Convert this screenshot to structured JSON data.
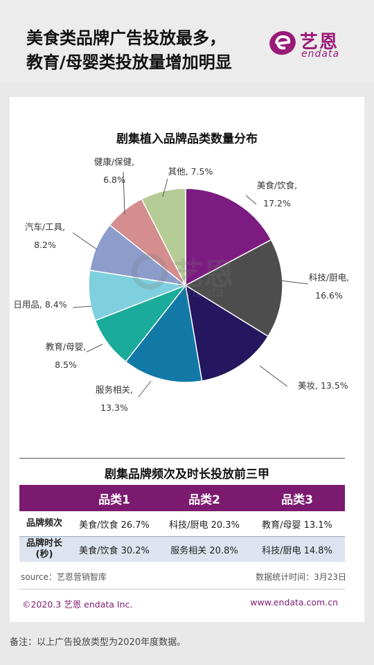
{
  "header": {
    "title_line1": "美食类品牌广告投放最多，",
    "title_line2": "教育/母婴类投放量增加明显",
    "logo_cn": "艺恩",
    "logo_en": "endata"
  },
  "chart_data": {
    "type": "pie",
    "title": "剧集植入品牌品类数量分布",
    "slices": [
      {
        "name": "美食/饮食",
        "value": 17.2,
        "label": "17.2%",
        "color": "#7c1c80"
      },
      {
        "name": "科技/厨电",
        "value": 16.6,
        "label": "16.6%",
        "color": "#4d4d4d"
      },
      {
        "name": "美妆",
        "value": 13.5,
        "label": "美妆, 13.5%",
        "color": "#241760"
      },
      {
        "name": "服务相关",
        "value": 13.3,
        "label": "13.3%",
        "color": "#1279a6"
      },
      {
        "name": "教育/母婴",
        "value": 8.5,
        "label": "8.5%",
        "color": "#1aab9a"
      },
      {
        "name": "日用品",
        "value": 8.4,
        "label": "日用品, 8.4%",
        "color": "#7fd0de"
      },
      {
        "name": "汽车/工具",
        "value": 8.2,
        "label": "8.2%",
        "color": "#8c9dcc"
      },
      {
        "name": "健康/保健",
        "value": 6.8,
        "label": "6.8%",
        "color": "#d48e8e"
      },
      {
        "name": "其他",
        "value": 7.5,
        "label": "其他, 7.5%",
        "color": "#b5cc96"
      }
    ]
  },
  "table": {
    "title": "剧集品牌频次及时长投放前三甲",
    "headers": [
      "",
      "品类1",
      "品类2",
      "品类3"
    ],
    "rows": [
      {
        "label": "品牌频次",
        "c1": "美食/饮食 26.7%",
        "c2": "科技/厨电 20.3%",
        "c3": "教育/母婴 13.1%"
      },
      {
        "label": "品牌时长\n(秒)",
        "c1": "美食/饮食  30.2%",
        "c2": "服务相关 20.8%",
        "c3": "科技/厨电 14.8%"
      }
    ]
  },
  "footer": {
    "source": "source：艺恩营销智库",
    "stat_time": "数据统计时间：3月23日",
    "copyright": "©2020.3  艺恩  endata  Inc.",
    "website": "www.endata.com.cn",
    "note": "备注：以上广告投放类型为2020年度数据。"
  },
  "colors": {
    "brand": "#7b1a6f",
    "table_alt_row": "#dde4ef"
  }
}
